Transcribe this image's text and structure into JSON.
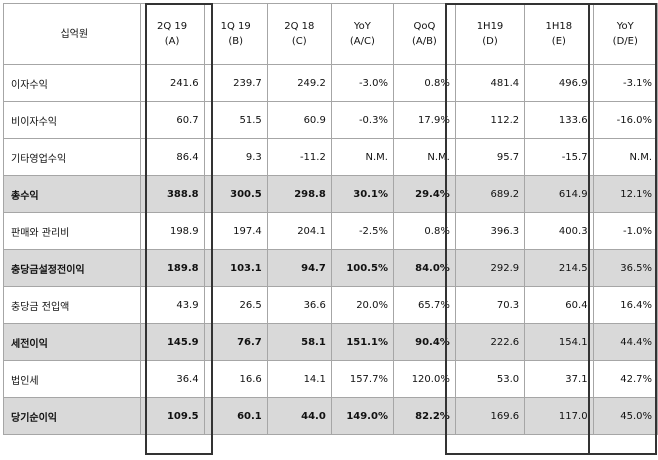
{
  "unit_label": "십억원",
  "headers": [
    {
      "period": "2Q 19",
      "code": "(A)"
    },
    {
      "period": "1Q 19",
      "code": "(B)"
    },
    {
      "period": "2Q 18",
      "code": "(C)"
    },
    {
      "period": "YoY",
      "code": "(A/C)"
    },
    {
      "period": "QoQ",
      "code": "(A/B)"
    },
    {
      "period": "1H19",
      "code": "(D)"
    },
    {
      "period": "1H18",
      "code": "(E)"
    },
    {
      "period": "YoY",
      "code": "(D/E)"
    }
  ],
  "rows": [
    {
      "label": "이자수익",
      "values": [
        "241.6",
        "239.7",
        "249.2",
        "-3.0%",
        "0.8%",
        "481.4",
        "496.9",
        "-3.1%"
      ],
      "highlight": false
    },
    {
      "label": "비이자수익",
      "values": [
        "60.7",
        "51.5",
        "60.9",
        "-0.3%",
        "17.9%",
        "112.2",
        "133.6",
        "-16.0%"
      ],
      "highlight": false
    },
    {
      "label": "기타영업수익",
      "values": [
        "86.4",
        "9.3",
        "-11.2",
        "N.M.",
        "N.M.",
        "95.7",
        "-15.7",
        "N.M."
      ],
      "highlight": false
    },
    {
      "label": "총수익",
      "values": [
        "388.8",
        "300.5",
        "298.8",
        "30.1%",
        "29.4%",
        "689.2",
        "614.9",
        "12.1%"
      ],
      "highlight": true
    },
    {
      "label": "판매와 관리비",
      "values": [
        "198.9",
        "197.4",
        "204.1",
        "-2.5%",
        "0.8%",
        "396.3",
        "400.3",
        "-1.0%"
      ],
      "highlight": false
    },
    {
      "label": "충당금설정전이익",
      "values": [
        "189.8",
        "103.1",
        "94.7",
        "100.5%",
        "84.0%",
        "292.9",
        "214.5",
        "36.5%"
      ],
      "highlight": true
    },
    {
      "label": "충당금 전입액",
      "values": [
        "43.9",
        "26.5",
        "36.6",
        "20.0%",
        "65.7%",
        "70.3",
        "60.4",
        "16.4%"
      ],
      "highlight": false
    },
    {
      "label": "세전이익",
      "values": [
        "145.9",
        "76.7",
        "58.1",
        "151.1%",
        "90.4%",
        "222.6",
        "154.1",
        "44.4%"
      ],
      "highlight": true
    },
    {
      "label": "법인세",
      "values": [
        "36.4",
        "16.6",
        "14.1",
        "157.7%",
        "120.0%",
        "53.0",
        "37.1",
        "42.7%"
      ],
      "highlight": false
    },
    {
      "label": "당기순이익",
      "values": [
        "109.5",
        "60.1",
        "44.0",
        "149.0%",
        "82.2%",
        "169.6",
        "117.0",
        "45.0%"
      ],
      "highlight": true
    }
  ]
}
